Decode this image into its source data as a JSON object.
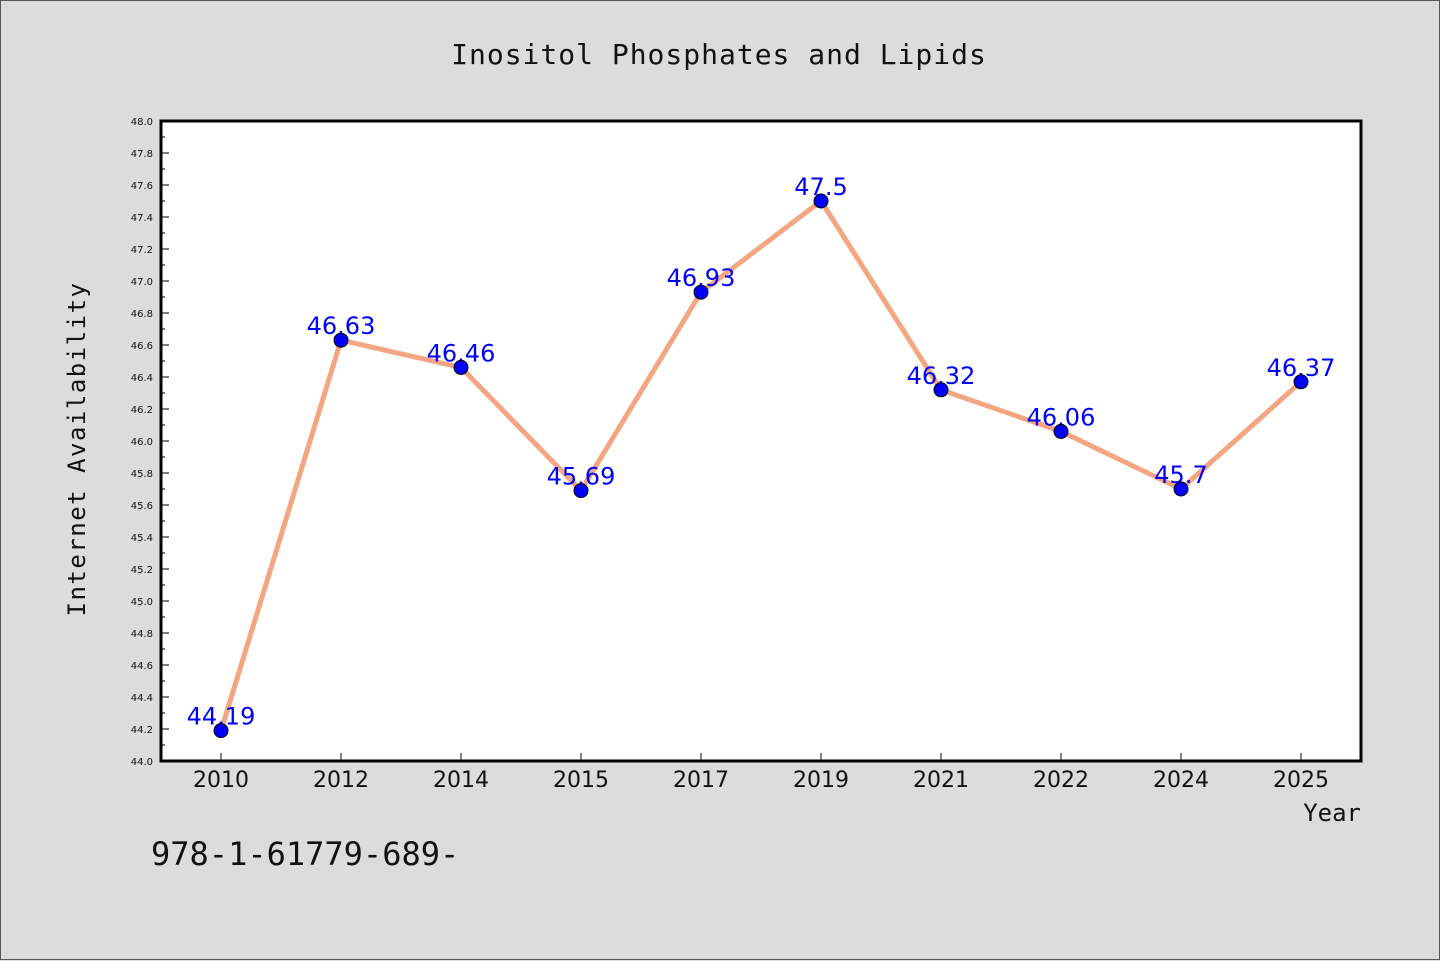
{
  "chart_data": {
    "type": "line",
    "title": "Inositol Phosphates and Lipids",
    "xlabel": "Year",
    "ylabel": "Internet Availability",
    "categories": [
      "2010",
      "2012",
      "2014",
      "2015",
      "2017",
      "2019",
      "2021",
      "2022",
      "2024",
      "2025"
    ],
    "series": [
      {
        "values": [
          44.19,
          46.63,
          46.46,
          45.69,
          46.93,
          47.5,
          46.32,
          46.06,
          45.7,
          46.37
        ]
      }
    ],
    "data_labels": [
      "44.19",
      "46.63",
      "46.46",
      "45.69",
      "46.93",
      "47.5",
      "46.32",
      "46.06",
      "45.7",
      "46.37"
    ],
    "ylim": [
      44.0,
      48.0
    ],
    "yticks": [
      "44.0",
      "44.2",
      "44.4",
      "44.6",
      "44.8",
      "45.0",
      "45.2",
      "45.4",
      "45.6",
      "45.8",
      "46.0",
      "46.2",
      "46.4",
      "46.6",
      "46.8",
      "47.0",
      "47.2",
      "47.4",
      "47.6",
      "47.8",
      "48.0"
    ],
    "grid": false,
    "colors": {
      "line": "#f4a582",
      "marker": "#0000ff",
      "label": "#0000ff",
      "background": "#dcdcdc",
      "plot_area": "#ffffff"
    }
  },
  "footer": {
    "text": "978-1-61779-689-"
  }
}
